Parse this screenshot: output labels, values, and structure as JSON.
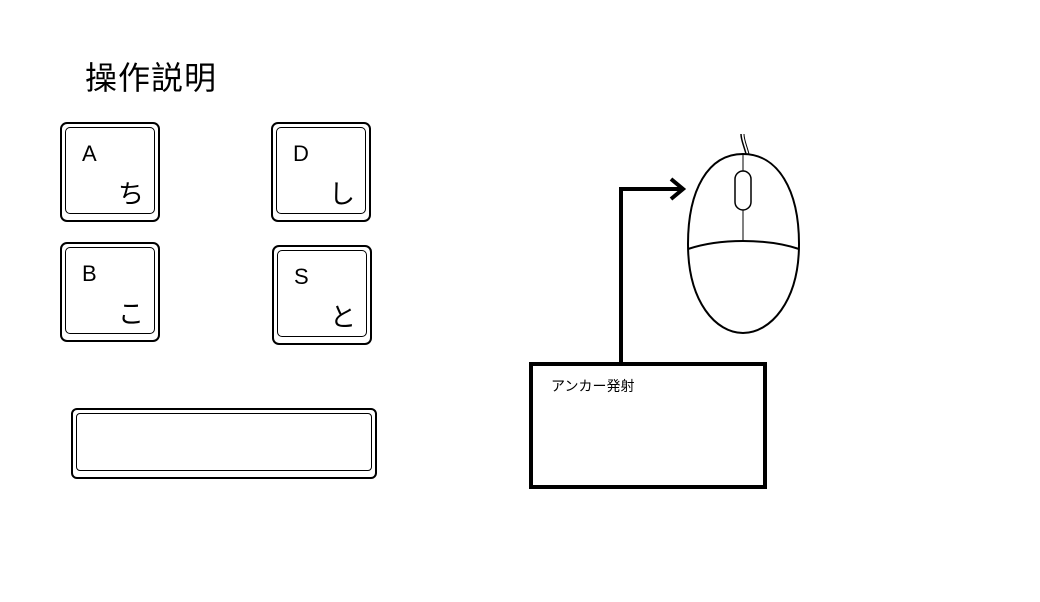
{
  "page": {
    "title": "操作説明"
  },
  "keys": [
    {
      "latin": "A",
      "kana": "ち"
    },
    {
      "latin": "D",
      "kana": "し"
    },
    {
      "latin": "B",
      "kana": "こ"
    },
    {
      "latin": "S",
      "kana": "と"
    }
  ],
  "mouse_action": {
    "label": "アンカー発射"
  },
  "icons": {
    "keyboard_key": "keyboard-key-icon",
    "spacebar": "spacebar-key-icon",
    "mouse": "mouse-icon",
    "arrow": "arrow-right-icon"
  }
}
